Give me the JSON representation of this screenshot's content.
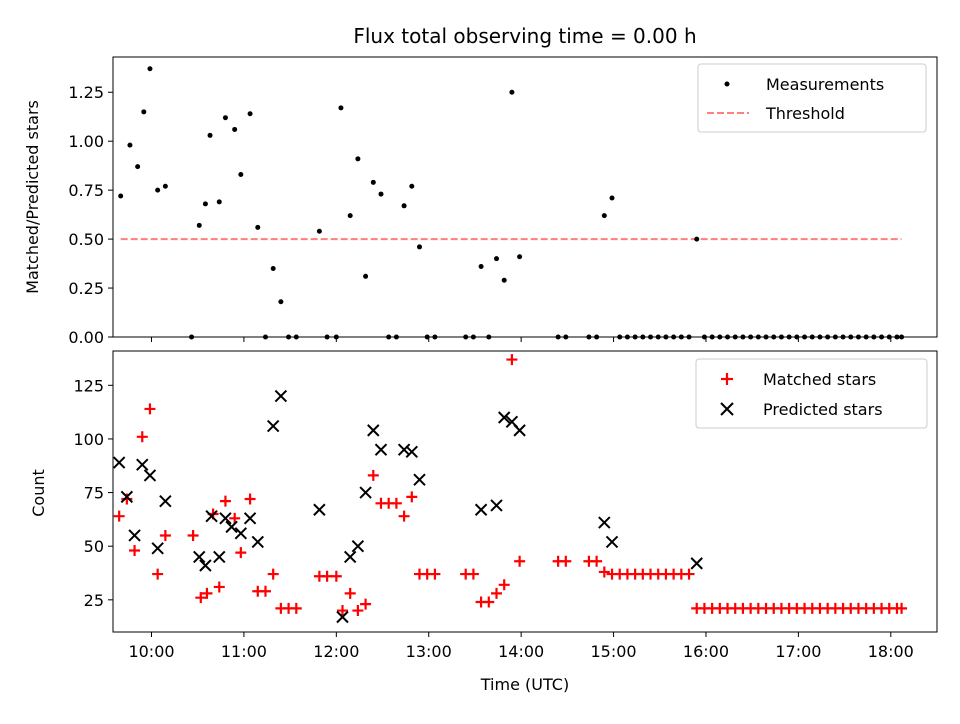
{
  "title": "Flux total observing time = 0.00 h",
  "colors": {
    "measurement": "#000000",
    "threshold": "#ff7f7f",
    "matched": "#ff0000",
    "predicted": "#000000"
  },
  "chart_data": [
    {
      "type": "scatter",
      "title": "Flux total observing time = 0.00 h",
      "xlabel": "",
      "ylabel": "Matched/Predicted stars",
      "xlim": [
        "09:35",
        "18:30"
      ],
      "ylim": [
        0,
        1.43
      ],
      "x_ticks": [
        "10:00",
        "11:00",
        "12:00",
        "13:00",
        "14:00",
        "15:00",
        "16:00",
        "17:00",
        "18:00"
      ],
      "y_ticks": [
        "0.00",
        "0.25",
        "0.50",
        "0.75",
        "1.00",
        "1.25"
      ],
      "legend": {
        "placement": "top-right",
        "entries": [
          "Measurements",
          "Threshold"
        ]
      },
      "threshold": {
        "name": "Threshold",
        "y": 0.5,
        "x": [
          "09:40",
          "18:07"
        ]
      },
      "series": [
        {
          "name": "Measurements",
          "marker": "dot",
          "points": [
            [
              "09:40",
              0.72
            ],
            [
              "09:46",
              0.98
            ],
            [
              "09:51",
              0.87
            ],
            [
              "09:55",
              1.15
            ],
            [
              "09:59",
              1.37
            ],
            [
              "10:04",
              0.75
            ],
            [
              "10:09",
              0.77
            ],
            [
              "10:26",
              0.0
            ],
            [
              "10:31",
              0.57
            ],
            [
              "10:35",
              0.68
            ],
            [
              "10:38",
              1.03
            ],
            [
              "10:44",
              0.69
            ],
            [
              "10:48",
              1.12
            ],
            [
              "10:54",
              1.06
            ],
            [
              "10:58",
              0.83
            ],
            [
              "11:04",
              1.14
            ],
            [
              "11:09",
              0.56
            ],
            [
              "11:14",
              0.0
            ],
            [
              "11:19",
              0.35
            ],
            [
              "11:24",
              0.18
            ],
            [
              "11:29",
              0.0
            ],
            [
              "11:34",
              0.0
            ],
            [
              "11:49",
              0.54
            ],
            [
              "11:54",
              0.0
            ],
            [
              "12:00",
              0.0
            ],
            [
              "12:03",
              1.17
            ],
            [
              "12:09",
              0.62
            ],
            [
              "12:14",
              0.91
            ],
            [
              "12:19",
              0.31
            ],
            [
              "12:24",
              0.79
            ],
            [
              "12:29",
              0.73
            ],
            [
              "12:34",
              0.0
            ],
            [
              "12:39",
              0.0
            ],
            [
              "12:44",
              0.67
            ],
            [
              "12:49",
              0.77
            ],
            [
              "12:54",
              0.46
            ],
            [
              "12:59",
              0.0
            ],
            [
              "13:04",
              0.0
            ],
            [
              "13:24",
              0.0
            ],
            [
              "13:29",
              0.0
            ],
            [
              "13:34",
              0.36
            ],
            [
              "13:39",
              0.0
            ],
            [
              "13:44",
              0.4
            ],
            [
              "13:49",
              0.29
            ],
            [
              "13:54",
              1.25
            ],
            [
              "13:59",
              0.41
            ],
            [
              "14:24",
              0.0
            ],
            [
              "14:29",
              0.0
            ],
            [
              "14:44",
              0.0
            ],
            [
              "14:49",
              0.0
            ],
            [
              "14:54",
              0.62
            ],
            [
              "14:59",
              0.71
            ],
            [
              "15:04",
              0.0
            ],
            [
              "15:09",
              0.0
            ],
            [
              "15:14",
              0.0
            ],
            [
              "15:19",
              0.0
            ],
            [
              "15:24",
              0.0
            ],
            [
              "15:29",
              0.0
            ],
            [
              "15:34",
              0.0
            ],
            [
              "15:39",
              0.0
            ],
            [
              "15:44",
              0.0
            ],
            [
              "15:49",
              0.0
            ],
            [
              "15:54",
              0.5
            ],
            [
              "15:59",
              0.0
            ],
            [
              "16:04",
              0.0
            ],
            [
              "16:09",
              0.0
            ],
            [
              "16:14",
              0.0
            ],
            [
              "16:19",
              0.0
            ],
            [
              "16:24",
              0.0
            ],
            [
              "16:29",
              0.0
            ],
            [
              "16:34",
              0.0
            ],
            [
              "16:39",
              0.0
            ],
            [
              "16:44",
              0.0
            ],
            [
              "16:49",
              0.0
            ],
            [
              "16:54",
              0.0
            ],
            [
              "16:59",
              0.0
            ],
            [
              "17:04",
              0.0
            ],
            [
              "17:09",
              0.0
            ],
            [
              "17:14",
              0.0
            ],
            [
              "17:19",
              0.0
            ],
            [
              "17:24",
              0.0
            ],
            [
              "17:29",
              0.0
            ],
            [
              "17:34",
              0.0
            ],
            [
              "17:39",
              0.0
            ],
            [
              "17:44",
              0.0
            ],
            [
              "17:49",
              0.0
            ],
            [
              "17:54",
              0.0
            ],
            [
              "17:59",
              0.0
            ],
            [
              "18:04",
              0.0
            ],
            [
              "18:07",
              0.0
            ]
          ]
        }
      ]
    },
    {
      "type": "scatter",
      "title": "",
      "xlabel": "Time (UTC)",
      "ylabel": "Count",
      "xlim": [
        "09:35",
        "18:30"
      ],
      "ylim": [
        10,
        141
      ],
      "x_ticks": [
        "10:00",
        "11:00",
        "12:00",
        "13:00",
        "14:00",
        "15:00",
        "16:00",
        "17:00",
        "18:00"
      ],
      "y_ticks": [
        "25",
        "50",
        "75",
        "100",
        "125"
      ],
      "legend": {
        "placement": "top-right",
        "entries": [
          "Matched stars",
          "Predicted stars"
        ]
      },
      "series": [
        {
          "name": "Matched stars",
          "marker": "plus",
          "points": [
            [
              "09:39",
              64
            ],
            [
              "09:44",
              72
            ],
            [
              "09:49",
              48
            ],
            [
              "09:54",
              101
            ],
            [
              "09:59",
              114
            ],
            [
              "10:04",
              37
            ],
            [
              "10:09",
              55
            ],
            [
              "10:27",
              55
            ],
            [
              "10:32",
              26
            ],
            [
              "10:36",
              28
            ],
            [
              "10:40",
              65
            ],
            [
              "10:44",
              31
            ],
            [
              "10:48",
              71
            ],
            [
              "10:54",
              63
            ],
            [
              "10:58",
              47
            ],
            [
              "11:04",
              72
            ],
            [
              "11:09",
              29
            ],
            [
              "11:14",
              29
            ],
            [
              "11:19",
              37
            ],
            [
              "11:24",
              21
            ],
            [
              "11:29",
              21
            ],
            [
              "11:34",
              21
            ],
            [
              "11:49",
              36
            ],
            [
              "11:54",
              36
            ],
            [
              "12:00",
              36
            ],
            [
              "12:04",
              20
            ],
            [
              "12:09",
              28
            ],
            [
              "12:14",
              20
            ],
            [
              "12:19",
              23
            ],
            [
              "12:24",
              83
            ],
            [
              "12:29",
              70
            ],
            [
              "12:34",
              70
            ],
            [
              "12:39",
              70
            ],
            [
              "12:44",
              64
            ],
            [
              "12:49",
              73
            ],
            [
              "12:54",
              37
            ],
            [
              "12:59",
              37
            ],
            [
              "13:04",
              37
            ],
            [
              "13:24",
              37
            ],
            [
              "13:29",
              37
            ],
            [
              "13:34",
              24
            ],
            [
              "13:39",
              24
            ],
            [
              "13:44",
              28
            ],
            [
              "13:49",
              32
            ],
            [
              "13:54",
              137
            ],
            [
              "13:59",
              43
            ],
            [
              "14:24",
              43
            ],
            [
              "14:29",
              43
            ],
            [
              "14:44",
              43
            ],
            [
              "14:49",
              43
            ],
            [
              "14:54",
              38
            ],
            [
              "14:59",
              37
            ],
            [
              "15:04",
              37
            ],
            [
              "15:09",
              37
            ],
            [
              "15:14",
              37
            ],
            [
              "15:19",
              37
            ],
            [
              "15:24",
              37
            ],
            [
              "15:29",
              37
            ],
            [
              "15:34",
              37
            ],
            [
              "15:39",
              37
            ],
            [
              "15:44",
              37
            ],
            [
              "15:49",
              37
            ],
            [
              "15:54",
              21
            ],
            [
              "15:59",
              21
            ],
            [
              "16:04",
              21
            ],
            [
              "16:09",
              21
            ],
            [
              "16:14",
              21
            ],
            [
              "16:19",
              21
            ],
            [
              "16:24",
              21
            ],
            [
              "16:29",
              21
            ],
            [
              "16:34",
              21
            ],
            [
              "16:39",
              21
            ],
            [
              "16:44",
              21
            ],
            [
              "16:49",
              21
            ],
            [
              "16:54",
              21
            ],
            [
              "16:59",
              21
            ],
            [
              "17:04",
              21
            ],
            [
              "17:09",
              21
            ],
            [
              "17:14",
              21
            ],
            [
              "17:19",
              21
            ],
            [
              "17:24",
              21
            ],
            [
              "17:29",
              21
            ],
            [
              "17:34",
              21
            ],
            [
              "17:39",
              21
            ],
            [
              "17:44",
              21
            ],
            [
              "17:49",
              21
            ],
            [
              "17:54",
              21
            ],
            [
              "17:59",
              21
            ],
            [
              "18:04",
              21
            ],
            [
              "18:07",
              21
            ]
          ]
        },
        {
          "name": "Predicted stars",
          "marker": "cross",
          "points": [
            [
              "09:39",
              89
            ],
            [
              "09:44",
              73
            ],
            [
              "09:49",
              55
            ],
            [
              "09:54",
              88
            ],
            [
              "09:59",
              83
            ],
            [
              "10:04",
              49
            ],
            [
              "10:09",
              71
            ],
            [
              "10:31",
              45
            ],
            [
              "10:35",
              41
            ],
            [
              "10:39",
              64
            ],
            [
              "10:44",
              45
            ],
            [
              "10:48",
              63
            ],
            [
              "10:52",
              59
            ],
            [
              "10:58",
              56
            ],
            [
              "11:04",
              63
            ],
            [
              "11:09",
              52
            ],
            [
              "11:19",
              106
            ],
            [
              "11:24",
              120
            ],
            [
              "11:49",
              67
            ],
            [
              "12:04",
              17
            ],
            [
              "12:09",
              45
            ],
            [
              "12:14",
              50
            ],
            [
              "12:19",
              75
            ],
            [
              "12:24",
              104
            ],
            [
              "12:29",
              95
            ],
            [
              "12:44",
              95
            ],
            [
              "12:49",
              94
            ],
            [
              "12:54",
              81
            ],
            [
              "13:34",
              67
            ],
            [
              "13:44",
              69
            ],
            [
              "13:49",
              110
            ],
            [
              "13:54",
              108
            ],
            [
              "13:59",
              104
            ],
            [
              "14:54",
              61
            ],
            [
              "14:59",
              52
            ],
            [
              "15:54",
              42
            ]
          ]
        }
      ]
    }
  ]
}
